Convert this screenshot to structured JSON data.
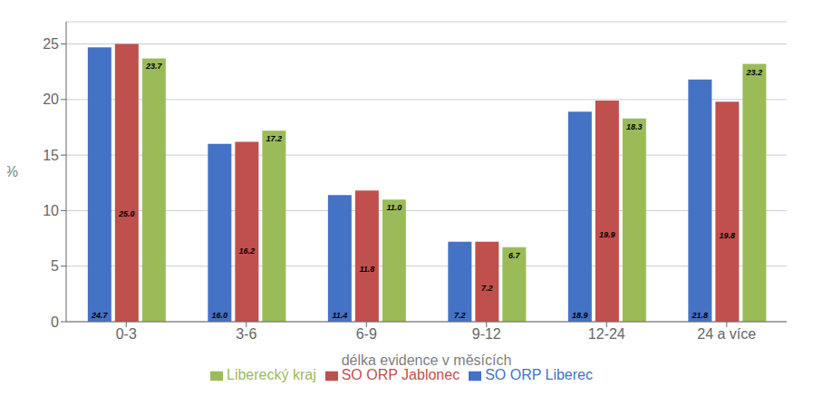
{
  "chart_data": {
    "type": "bar",
    "categories": [
      "0-3",
      "3-6",
      "6-9",
      "9-12",
      "12-24",
      "24 a více"
    ],
    "series": [
      {
        "name": "SO ORP Liberec",
        "color": "#4472C4",
        "values": [
          24.7,
          16.0,
          11.4,
          7.2,
          18.9,
          21.8
        ],
        "value_labels": [
          "24.7",
          "16.0",
          "11.4",
          "7.2",
          "18.9",
          "21.8"
        ]
      },
      {
        "name": "SO ORP Jablonec",
        "color": "#C0504D",
        "values": [
          25.0,
          16.2,
          11.8,
          7.2,
          19.9,
          19.8
        ],
        "value_labels": [
          "25.0",
          "16.2",
          "11.8",
          "7.2",
          "19.9",
          "19.8"
        ]
      },
      {
        "name": "Liberecký kraj",
        "color": "#9BBB59",
        "values": [
          23.7,
          17.2,
          11.0,
          6.7,
          18.3,
          23.2
        ],
        "value_labels": [
          "23.7",
          "17.2",
          "11.0",
          "6.7",
          "18.3",
          "23.2"
        ]
      }
    ],
    "xlabel": "délka evidence v měsících",
    "ylabel": "%",
    "ylim": [
      0,
      27
    ],
    "yticks": [
      0,
      5,
      10,
      15,
      20,
      25
    ],
    "grid": true,
    "legend": "bottom",
    "data_labels": true
  }
}
